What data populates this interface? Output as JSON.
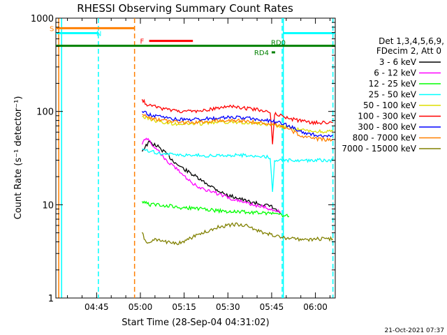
{
  "chart_data": {
    "type": "line",
    "title": "RHESSI Observing Summary Count Rates",
    "xlabel": "Start Time (28-Sep-04 04:31:02)",
    "ylabel": "Count Rate (s⁻¹ detector⁻¹)",
    "yscale": "log",
    "ylim": [
      1,
      1000
    ],
    "xlim_minutes": [
      271.03,
      366.8
    ],
    "x_ticks": [
      {
        "label": "04:45",
        "min": 285
      },
      {
        "label": "05:00",
        "min": 300
      },
      {
        "label": "05:15",
        "min": 315
      },
      {
        "label": "05:30",
        "min": 330
      },
      {
        "label": "05:45",
        "min": 345
      },
      {
        "label": "06:00",
        "min": 360
      }
    ],
    "y_ticks": [
      {
        "label": "1",
        "value": 1
      },
      {
        "label": "10",
        "value": 10
      },
      {
        "label": "100",
        "value": 100
      },
      {
        "label": "1000",
        "value": 1000
      }
    ],
    "legend": {
      "header_lines": [
        "Det 1,3,4,5,6,9,",
        "FDecim 2, Att 0"
      ],
      "placement": "right"
    },
    "series": [
      {
        "name": "3 - 6 keV",
        "color": "#000000",
        "x": [
          300.6,
          303,
          306,
          309,
          312,
          315,
          318,
          321,
          324,
          327,
          330,
          333,
          336,
          339,
          342,
          345,
          348
        ],
        "y": [
          38,
          47,
          42,
          35,
          28,
          24,
          21,
          18,
          16,
          14,
          12.5,
          12,
          11,
          10.5,
          10,
          9.5,
          8
        ]
      },
      {
        "name": "6 - 12 keV",
        "color": "#ff00ff",
        "x": [
          300.6,
          302,
          304,
          306,
          309,
          312,
          315,
          318,
          321,
          324,
          327,
          330,
          333,
          336,
          339,
          342,
          345,
          348
        ],
        "y": [
          45,
          52,
          45,
          38,
          30,
          25,
          20,
          17,
          15,
          14,
          13,
          12,
          11,
          10.5,
          10,
          9.5,
          9,
          8.5
        ]
      },
      {
        "name": "12 - 25 keV",
        "color": "#00ff00",
        "x": [
          300.6,
          303,
          306,
          309,
          312,
          315,
          318,
          321,
          324,
          327,
          330,
          333,
          336,
          339,
          342,
          345,
          348,
          351
        ],
        "y": [
          11,
          10,
          10,
          9.8,
          9.5,
          9.2,
          9.2,
          9,
          8.8,
          8.6,
          8.5,
          8.5,
          8.3,
          8.3,
          8.2,
          8,
          7.8,
          7.5
        ]
      },
      {
        "name": "25 - 50 keV",
        "color": "#00ffff",
        "x": [
          300.6,
          303,
          306,
          309,
          312,
          315,
          318,
          321,
          324,
          327,
          330,
          333,
          336,
          339,
          342,
          344.5,
          345.3,
          346,
          348,
          351,
          354,
          357,
          360,
          363,
          366
        ],
        "y": [
          40,
          38,
          36,
          35,
          34,
          34,
          34,
          33.5,
          33.5,
          33.5,
          34,
          34,
          34,
          33.5,
          33,
          32,
          14,
          30,
          30,
          30,
          30,
          30,
          30,
          30,
          30
        ]
      },
      {
        "name": "50 - 100 keV",
        "color": "#dddd00",
        "x": [
          300.6,
          303,
          306,
          309,
          312,
          315,
          318,
          321,
          324,
          327,
          330,
          333,
          336,
          339,
          342,
          345,
          348,
          351,
          354,
          357,
          360,
          363,
          366
        ],
        "y": [
          88,
          84,
          78,
          75,
          74,
          74,
          74,
          74,
          76,
          76,
          77,
          77,
          76,
          75,
          73,
          71,
          69,
          67,
          64,
          62,
          61,
          61,
          61
        ]
      },
      {
        "name": "100 - 300 keV",
        "color": "#ff0000",
        "x": [
          300.6,
          302,
          304,
          306,
          309,
          312,
          315,
          318,
          321,
          324,
          327,
          330,
          333,
          336,
          339,
          342,
          344.5,
          345.3,
          346,
          348,
          351,
          354,
          357,
          360,
          363,
          366
        ],
        "y": [
          135,
          120,
          115,
          110,
          105,
          102,
          100,
          99,
          101,
          106,
          110,
          113,
          112,
          108,
          105,
          103,
          100,
          45,
          95,
          92,
          84,
          80,
          77,
          76,
          76,
          76
        ]
      },
      {
        "name": "300 - 800 keV",
        "color": "#0000ff",
        "x": [
          300.6,
          303,
          306,
          309,
          312,
          315,
          318,
          321,
          324,
          327,
          330,
          333,
          336,
          339,
          342,
          345,
          348,
          351,
          354,
          357,
          360,
          363,
          366
        ],
        "y": [
          100,
          92,
          88,
          85,
          83,
          82,
          82,
          83,
          84,
          85,
          86,
          86,
          85,
          83,
          81,
          79,
          75,
          70,
          62,
          58,
          56,
          55,
          55
        ]
      },
      {
        "name": "800 - 7000 keV",
        "color": "#ff8000",
        "x": [
          300.6,
          303,
          306,
          309,
          312,
          315,
          318,
          321,
          324,
          327,
          330,
          333,
          336,
          339,
          342,
          345,
          348,
          351,
          354,
          357,
          360,
          363,
          366
        ],
        "y": [
          92,
          86,
          82,
          79,
          77,
          76,
          76,
          77,
          79,
          80,
          80,
          80,
          79,
          77,
          75,
          73,
          70,
          64,
          57,
          53,
          51,
          50,
          50
        ]
      },
      {
        "name": "7000 - 15000 keV",
        "color": "#808000",
        "x": [
          300.6,
          302,
          305,
          309,
          312,
          315,
          318,
          321,
          324,
          327,
          330,
          333,
          336,
          339,
          342,
          345,
          348,
          351,
          354,
          357,
          360,
          363,
          366
        ],
        "y": [
          5,
          3.8,
          4.2,
          4,
          3.8,
          4,
          4.5,
          5,
          5.3,
          5.8,
          6,
          6.2,
          6,
          5.5,
          5,
          4.8,
          4.5,
          4.3,
          4.3,
          4.2,
          4.3,
          4.3,
          4.3
        ]
      }
    ],
    "flags": [
      {
        "label": "S",
        "color": "#ff8000",
        "x_start": 271.03,
        "x_end": 298.0,
        "y": 780
      },
      {
        "label": "N",
        "color": "#00ffff",
        "x_start": 271.03,
        "x_end": 285.6,
        "y": 690
      },
      {
        "label": "F",
        "color": "#ff0000",
        "x_start": 303.0,
        "x_end": 318.0,
        "y": 570
      },
      {
        "label": "RD0",
        "color": "#008000",
        "x_start": 271.03,
        "x_end": 366.8,
        "y": 505
      },
      {
        "label": "RD4",
        "color": "#008000",
        "x_start": 345.0,
        "x_end": 346.2,
        "y": 430
      },
      {
        "label": "",
        "color": "#00ffff",
        "x_start": 349.0,
        "x_end": 366.8,
        "y": 690
      }
    ],
    "vlines": [
      {
        "min": 272.0,
        "color": "#ff8000",
        "dashed": false
      },
      {
        "min": 273.0,
        "color": "#00ffff",
        "dashed": false
      },
      {
        "min": 285.6,
        "color": "#00ffff",
        "dashed": true
      },
      {
        "min": 298.0,
        "color": "#ff8000",
        "dashed": true
      },
      {
        "min": 348.6,
        "color": "#00ffff",
        "dashed": true
      },
      {
        "min": 349.0,
        "color": "#00ffff",
        "dashed": false
      },
      {
        "min": 366.0,
        "color": "#00ffff",
        "dashed": true
      }
    ]
  },
  "footer_timestamp": "21-Oct-2021 07:37"
}
